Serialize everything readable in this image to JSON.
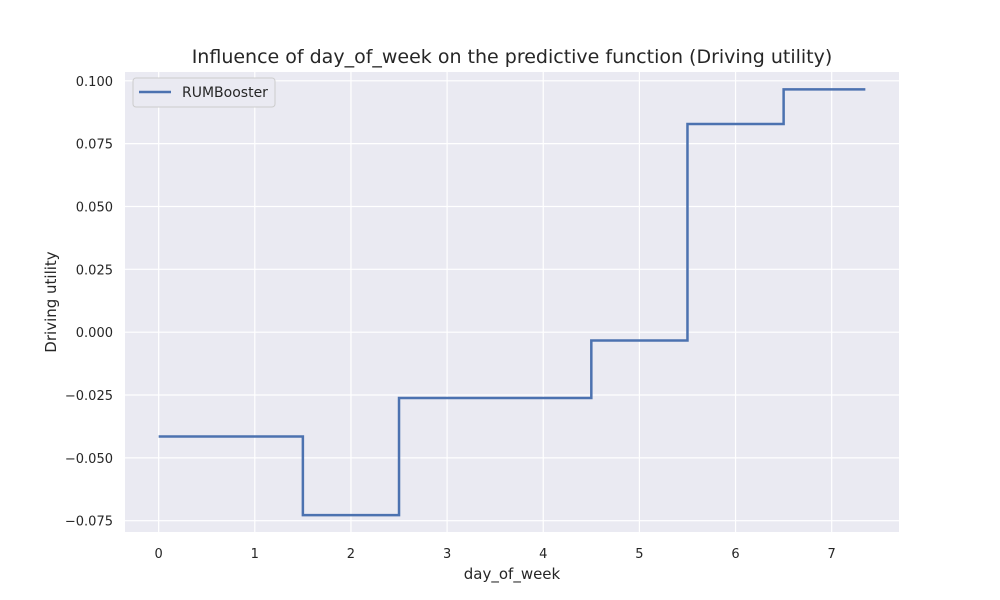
{
  "chart_data": {
    "type": "line",
    "step": "post",
    "title": "Influence of day_of_week on the predictive function (Driving utility)",
    "xlabel": "day_of_week",
    "ylabel": "Driving utility",
    "xlim": [
      -0.35,
      7.7
    ],
    "ylim": [
      -0.0795,
      0.1035
    ],
    "xticks": [
      0,
      1,
      2,
      3,
      4,
      5,
      6,
      7
    ],
    "xtick_labels": [
      "0",
      "1",
      "2",
      "3",
      "4",
      "5",
      "6",
      "7"
    ],
    "yticks": [
      -0.075,
      -0.05,
      -0.025,
      0.0,
      0.025,
      0.05,
      0.075,
      0.1
    ],
    "ytick_labels": [
      "−0.075",
      "−0.050",
      "−0.025",
      "0.000",
      "0.025",
      "0.050",
      "0.075",
      "0.100"
    ],
    "grid": true,
    "legend_position": "top-left",
    "background_color": "#eaeaf2",
    "grid_color": "#ffffff",
    "series": [
      {
        "name": "RUMBooster",
        "color": "#4c72b0",
        "x": [
          0,
          1.5,
          2.5,
          4.5,
          5.5,
          6.5,
          7.35
        ],
        "y": [
          -0.0415,
          -0.0728,
          -0.0262,
          -0.0033,
          0.0828,
          0.0966,
          0.0966
        ]
      }
    ]
  }
}
